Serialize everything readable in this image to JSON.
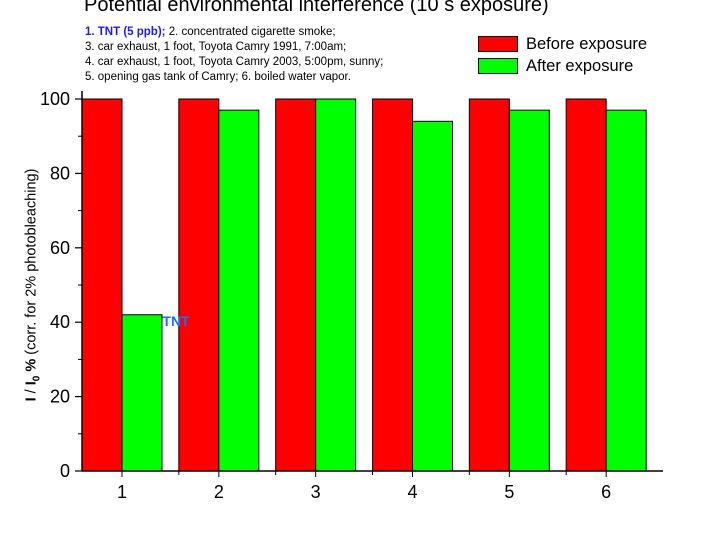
{
  "chart_data": {
    "type": "bar",
    "title": "Potential environmental interference (10 s exposure)",
    "notes": {
      "line1_highlight": "1. TNT (5 ppb);",
      "line1_rest": " 2. concentrated cigarette smoke;",
      "line2": "3. car exhaust, 1 foot, Toyota Camry 1991, 7:00am;",
      "line3": "4. car exhaust, 1 foot, Toyota Camry 2003, 5:00pm, sunny;",
      "line4": "5. opening gas tank of Camry; 6. boiled water vapor."
    },
    "ylabel": {
      "main": "I",
      "slash": " / ",
      "ref": "I",
      "sub": "0",
      "pct": " %",
      "note": " (corr. for 2% photobleaching)"
    },
    "categories": [
      "1",
      "2",
      "3",
      "4",
      "5",
      "6"
    ],
    "ylim": [
      0,
      100
    ],
    "yticks": [
      0,
      20,
      40,
      60,
      80,
      100
    ],
    "series": [
      {
        "name": "Before exposure",
        "color": "#ff0000",
        "values": [
          100,
          100,
          100,
          100,
          100,
          100
        ]
      },
      {
        "name": "After exposure",
        "color": "#00ff00",
        "values": [
          42,
          97,
          100,
          94,
          97,
          97
        ]
      }
    ],
    "annotations": [
      {
        "text": "TNT",
        "color": "#1a6fff"
      }
    ],
    "legend_position": "top-right",
    "grid": false
  }
}
